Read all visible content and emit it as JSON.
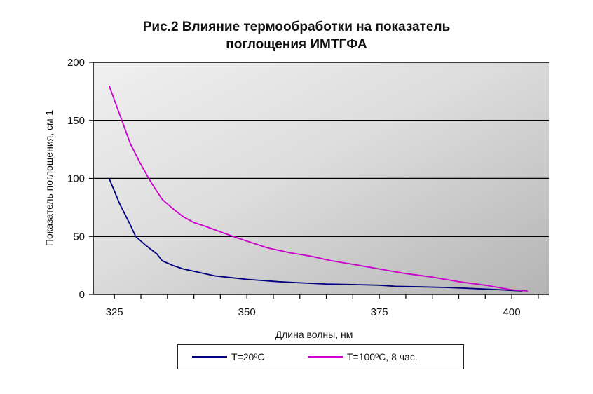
{
  "chart_data": {
    "type": "line",
    "title_line1": "Рис.2  Влияние термообработки на показатель",
    "title_line2": "поглощения ИМТГФА",
    "xlabel": "Длина волны, нм",
    "ylabel": "Показатель поглощения, см-1",
    "xlim": [
      321,
      407
    ],
    "ylim": [
      0,
      200
    ],
    "xticks": [
      325,
      350,
      375,
      400
    ],
    "yticks": [
      0,
      50,
      100,
      150,
      200
    ],
    "grid": "horizontal",
    "plot_background": "gradient gray",
    "legend_position": "bottom",
    "series": [
      {
        "name": "T=20ºC",
        "color": "#000080",
        "x": [
          324,
          326,
          328,
          329,
          331,
          333,
          334,
          336,
          338,
          340,
          342,
          344,
          346,
          348,
          350,
          353,
          356,
          360,
          365,
          370,
          375,
          378,
          383,
          388,
          393,
          398,
          400,
          402
        ],
        "y": [
          100,
          78,
          60,
          50,
          42,
          35,
          29,
          25,
          22,
          20,
          18,
          16,
          15,
          14,
          13,
          12,
          11,
          10,
          9,
          8.5,
          8,
          7,
          6.5,
          6,
          5,
          4,
          3.5,
          3
        ]
      },
      {
        "name": "T=100ºC, 8 час.",
        "color": "#cc00cc",
        "x": [
          324,
          326,
          328,
          330,
          332,
          334,
          336,
          338,
          340,
          342,
          345,
          348,
          350,
          354,
          358,
          362,
          366,
          370,
          375,
          380,
          385,
          390,
          395,
          400,
          403
        ],
        "y": [
          180,
          155,
          130,
          112,
          96,
          82,
          74,
          67,
          62,
          59,
          54,
          49,
          46,
          40,
          36,
          33,
          29,
          26,
          22,
          18,
          15,
          11,
          8,
          4,
          3
        ]
      }
    ]
  }
}
